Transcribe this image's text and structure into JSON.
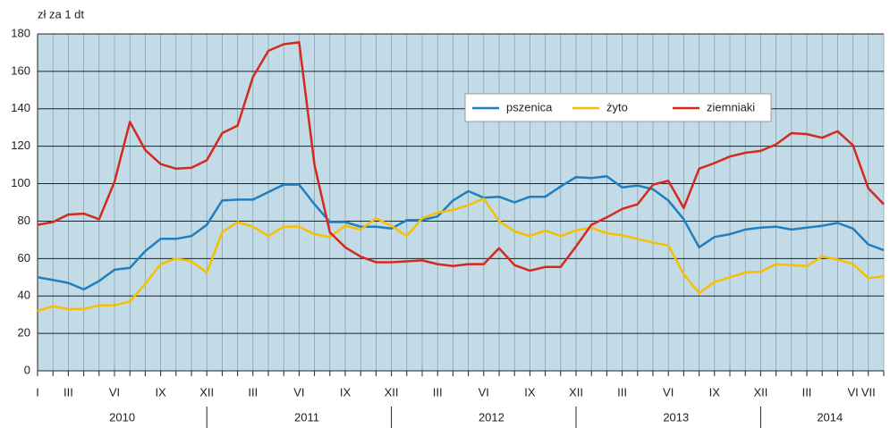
{
  "chart_data": {
    "type": "line",
    "y_axis_label": "zł za 1 dt",
    "categories": [
      "I",
      null,
      "III",
      null,
      null,
      "VI",
      null,
      null,
      "IX",
      null,
      null,
      "XII",
      null,
      null,
      "III",
      null,
      null,
      "VI",
      null,
      null,
      "IX",
      null,
      null,
      "XII",
      null,
      null,
      "III",
      null,
      null,
      "VI",
      null,
      null,
      "IX",
      null,
      null,
      "XII",
      null,
      null,
      "III",
      null,
      null,
      "VI",
      null,
      null,
      "IX",
      null,
      null,
      "XII",
      null,
      null,
      "III",
      null,
      null,
      "VI",
      "VII",
      null
    ],
    "years": [
      "2010",
      "2011",
      "2012",
      "2013",
      "2014"
    ],
    "series": [
      {
        "name": "pszenica",
        "color": "#1f7fc0",
        "values": [
          50,
          48.5,
          47,
          43.5,
          48,
          54,
          55,
          64,
          70.5,
          70.5,
          72,
          78,
          91,
          91.5,
          91.5,
          95.5,
          99.5,
          99.5,
          89,
          79.5,
          79.5,
          77,
          77,
          76,
          80.5,
          80.5,
          82.5,
          91,
          96,
          92.5,
          93,
          90,
          93,
          93,
          98.5,
          103.5,
          103,
          104,
          98,
          99,
          97,
          91,
          81,
          66,
          71.5,
          73,
          75.5,
          76.5,
          77,
          75.5,
          76.5,
          77.5,
          79,
          76,
          67.5,
          64.5
        ]
      },
      {
        "name": "żyto",
        "color": "#f5c000",
        "values": [
          32,
          34.5,
          33,
          33,
          35,
          35,
          37,
          46.5,
          57,
          60,
          58.5,
          52.5,
          74,
          79.5,
          77,
          72,
          77,
          77,
          73,
          71.5,
          77.5,
          75.5,
          81.5,
          77.5,
          72,
          81.5,
          84.5,
          86,
          88.5,
          92,
          80,
          74.5,
          72,
          75,
          72,
          75,
          76.5,
          73.5,
          72.5,
          70.5,
          68.5,
          67,
          51.5,
          41.5,
          47.5,
          50,
          52.5,
          53,
          57,
          56.5,
          56,
          61,
          59.5,
          57,
          49.5,
          50.5
        ]
      },
      {
        "name": "ziemniaki",
        "color": "#d42a1e",
        "values": [
          78,
          79.5,
          83.5,
          84,
          81,
          101,
          133,
          118,
          110.5,
          108,
          108.5,
          112.5,
          127,
          131,
          157,
          171,
          174.5,
          175.5,
          110,
          74,
          66,
          61,
          58,
          58,
          58.5,
          59,
          57,
          56,
          57,
          57,
          65.5,
          56.5,
          53.5,
          55.5,
          55.5,
          66.5,
          78,
          82,
          86.5,
          89,
          99.5,
          101.5,
          87,
          108,
          111,
          114.5,
          116.5,
          117.5,
          121,
          127,
          126.5,
          124.5,
          128,
          120.5,
          97.5,
          89
        ]
      }
    ],
    "ylim": [
      0,
      180
    ],
    "yticks": [
      0,
      20,
      40,
      60,
      80,
      100,
      120,
      140,
      160,
      180
    ],
    "grid": true,
    "background": "#c3dbe6",
    "legend": "top-right"
  }
}
